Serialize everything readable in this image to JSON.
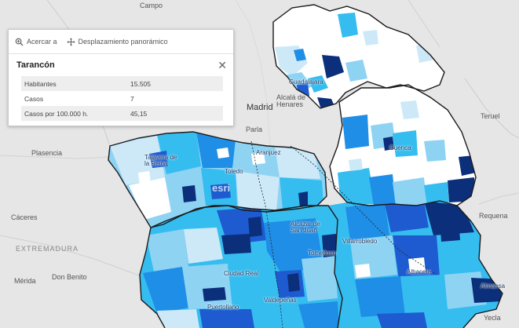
{
  "popup": {
    "toolbar": {
      "zoom_label": "Acercar a",
      "pan_label": "Desplazamiento panorámico"
    },
    "title": "Tarancón",
    "rows": [
      {
        "label": "Habitantes",
        "value": "15.505"
      },
      {
        "label": "Casos",
        "value": "7"
      },
      {
        "label": "Casos por 100.000 h.",
        "value": "45,15"
      }
    ]
  },
  "map": {
    "labels": {
      "campo": "Campo",
      "madrid": "Madrid",
      "alcala": "Alcalá de\nHenares",
      "parla": "Parla",
      "aranjuez": "Aranjuez",
      "guadalajara": "Guadalajara",
      "cuenca": "Cuenca",
      "teruel": "Teruel",
      "plasencia": "Plasencia",
      "talavera": "Talavera de\nla Reina",
      "toledo": "Toledo",
      "caceres": "Cáceres",
      "extremadura": "EXTREMADURA",
      "merida": "Mérida",
      "donbenito": "Don Benito",
      "manzanares": "Manzanares",
      "alcazar": "Alcázar de\nSan Juan",
      "tomelloso": "Tomelloso",
      "ciudadreal": "Ciudad Real",
      "valdepenas": "Valdepeñas",
      "puertollano": "Puertollano",
      "villarrobledo": "Villarrobledo",
      "albacete": "Albacete",
      "almansa": "Almansa",
      "requena": "Requena",
      "yecla": "Yecla",
      "hellin": "Hellín",
      "esri": "esri"
    },
    "legend_colors": {
      "background": "#e6e6e6",
      "no_data": "#ffffff",
      "very_light": "#cde9f8",
      "light": "#8fd3f3",
      "medium": "#35bdf0",
      "strong": "#1f8ee6",
      "deep": "#1e5bd0",
      "dark": "#0b2f7a",
      "border": "#1a1a1a"
    }
  }
}
